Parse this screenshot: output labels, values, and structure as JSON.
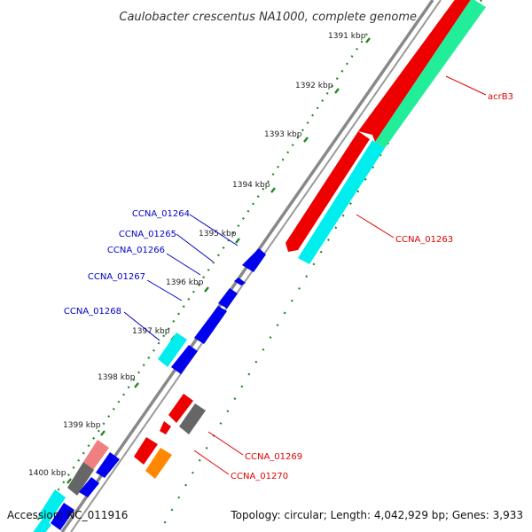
{
  "title": "Caulobacter crescentus NA1000, complete genome",
  "footer": {
    "accession": "Accession: NC_011916",
    "summary": "Topology: circular; Length: 4,042,929 bp; Genes: 3,933"
  },
  "kbp_ticks": [
    "1391 kbp",
    "1392 kbp",
    "1393 kbp",
    "1394 kbp",
    "1395 kbp",
    "1396 kbp",
    "1397 kbp",
    "1398 kbp",
    "1399 kbp",
    "1400 kbp"
  ],
  "forward_genes": [
    {
      "label": "acrB3"
    },
    {
      "label": "CCNA_01263"
    },
    {
      "label": "CCNA_01269"
    },
    {
      "label": "CCNA_01270"
    }
  ],
  "reverse_genes": [
    {
      "label": "CCNA_01264"
    },
    {
      "label": "CCNA_01265"
    },
    {
      "label": "CCNA_01266"
    },
    {
      "label": "CCNA_01267"
    },
    {
      "label": "CCNA_01268"
    }
  ],
  "colors": {
    "backbone": "#8a8a8a",
    "forward_label": "#e00000",
    "reverse_label": "#0000c8",
    "red": "#ee0000",
    "green": "#22ee99",
    "cyan": "#00eeee",
    "blue": "#0000ee",
    "gray": "#666666",
    "pink": "#f08080",
    "orange": "#ff8800",
    "tick_dots": "#228822"
  }
}
